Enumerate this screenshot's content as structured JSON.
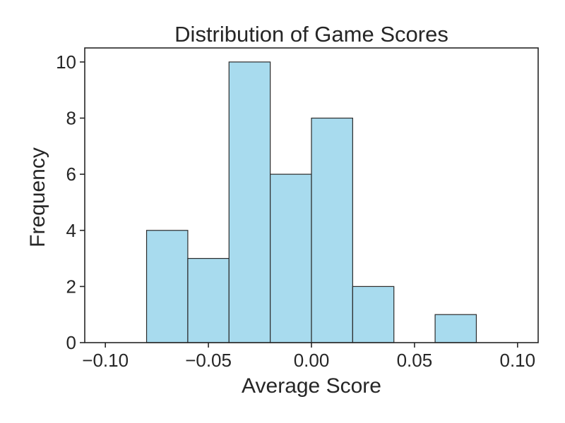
{
  "chart_data": {
    "type": "bar",
    "title": "Distribution of Game Scores",
    "xlabel": "Average Score",
    "ylabel": "Frequency",
    "bins": [
      {
        "start": -0.08,
        "end": -0.06,
        "count": 4
      },
      {
        "start": -0.06,
        "end": -0.04,
        "count": 3
      },
      {
        "start": -0.04,
        "end": -0.02,
        "count": 10
      },
      {
        "start": -0.02,
        "end": 0.0,
        "count": 6
      },
      {
        "start": 0.0,
        "end": 0.02,
        "count": 8
      },
      {
        "start": 0.02,
        "end": 0.04,
        "count": 2
      },
      {
        "start": 0.04,
        "end": 0.06,
        "count": 0
      },
      {
        "start": 0.06,
        "end": 0.08,
        "count": 1
      }
    ],
    "xlim": [
      -0.11,
      0.11
    ],
    "ylim": [
      0,
      10.5
    ],
    "xticks": [
      {
        "value": -0.1,
        "label": "−0.10"
      },
      {
        "value": -0.05,
        "label": "−0.05"
      },
      {
        "value": 0.0,
        "label": "0.00"
      },
      {
        "value": 0.05,
        "label": "0.05"
      },
      {
        "value": 0.1,
        "label": "0.10"
      }
    ],
    "yticks": [
      {
        "value": 0,
        "label": "0"
      },
      {
        "value": 2,
        "label": "2"
      },
      {
        "value": 4,
        "label": "4"
      },
      {
        "value": 6,
        "label": "6"
      },
      {
        "value": 8,
        "label": "8"
      },
      {
        "value": 10,
        "label": "10"
      }
    ],
    "grid": false,
    "bar_color": "#a8dbee",
    "edge_color": "#2b2b2b"
  }
}
